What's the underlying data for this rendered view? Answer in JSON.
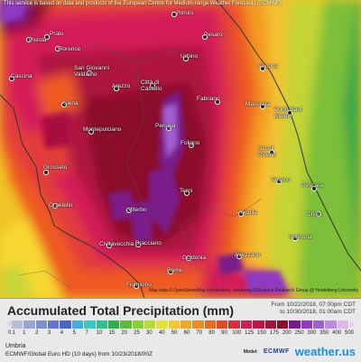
{
  "map": {
    "disclaimer": "This service is based on data and products of the European Centre for Medium-range Weather Forecasts (ECMWF)",
    "attribution": "Map data © OpenStreetMap contributors, rendering GIScience Research Group @ Heidelberg University",
    "cities": [
      {
        "id": "rimini",
        "label": "Rimini"
      },
      {
        "id": "prato",
        "label": "Prato"
      },
      {
        "id": "pistoia",
        "label": "Pistoia"
      },
      {
        "id": "florence",
        "label": "Florence"
      },
      {
        "id": "pesaro",
        "label": "Pesaro"
      },
      {
        "id": "san-giovanni",
        "label": "San Giovanni\nValdarno"
      },
      {
        "id": "urbino",
        "label": "Urbino"
      },
      {
        "id": "cascina",
        "label": "Cascina"
      },
      {
        "id": "siena",
        "label": "Siena"
      },
      {
        "id": "arezzo",
        "label": "Arezzo"
      },
      {
        "id": "citta-di-castello",
        "label": "Città di\nCastello"
      },
      {
        "id": "ancona",
        "label": "Ancona"
      },
      {
        "id": "macerata",
        "label": "Macerata"
      },
      {
        "id": "porto-san-elpidio",
        "label": "Porto Sant\nElpidio"
      },
      {
        "id": "fabriano",
        "label": "Fabriano"
      },
      {
        "id": "perugia",
        "label": "Perugia"
      },
      {
        "id": "montepulciano",
        "label": "Montepulciano"
      },
      {
        "id": "foligno",
        "label": "Foligno"
      },
      {
        "id": "ascoli-piceno",
        "label": "Ascoli\nPiceno"
      },
      {
        "id": "teramo",
        "label": "Teramo"
      },
      {
        "id": "grosseto",
        "label": "Grosseto"
      },
      {
        "id": "terni",
        "label": "Terni"
      },
      {
        "id": "pescara",
        "label": "Pescara"
      },
      {
        "id": "orbetello",
        "label": "Orbetello"
      },
      {
        "id": "viterbo",
        "label": "Viterbo"
      },
      {
        "id": "laquila",
        "label": "L'Aquila"
      },
      {
        "id": "chieti",
        "label": "Chieti"
      },
      {
        "id": "civitavecchia",
        "label": "Civitavecchia"
      },
      {
        "id": "bracciano",
        "label": "Bracciano"
      },
      {
        "id": "sulmona",
        "label": "Sulmona"
      },
      {
        "id": "guidonia",
        "label": "Guidonia"
      },
      {
        "id": "avezzano",
        "label": "Avezzano"
      },
      {
        "id": "rome",
        "label": "Rome"
      },
      {
        "id": "fiumicino",
        "label": "Fiumicino"
      }
    ]
  },
  "legend": {
    "title": "Accumulated Total Precipitation (mm)",
    "valid_from": "From 10/22/2018, 07:00pm CDT",
    "valid_to": "to 10/30/2018, 01:00am CDT",
    "ticks": [
      "0.1",
      "1",
      "2",
      "3",
      "4",
      "5",
      "7",
      "10",
      "15",
      "20",
      "25",
      "30",
      "40",
      "50",
      "60",
      "70",
      "80",
      "90",
      "100",
      "125",
      "150",
      "175",
      "200",
      "250",
      "300",
      "350",
      "400",
      "500"
    ],
    "colors": [
      "#b8bed6",
      "#98a4d4",
      "#7e8fd1",
      "#5f76cc",
      "#4a63c7",
      "#3fb0d8",
      "#36c8c4",
      "#2cc28e",
      "#2fb14a",
      "#54c032",
      "#8ad033",
      "#b8db32",
      "#e6e231",
      "#f5c629",
      "#f5a623",
      "#f18a1f",
      "#ec6a1e",
      "#e54a25",
      "#de2c3c",
      "#d21f52",
      "#bf1450",
      "#a8103f",
      "#8c0c2c",
      "#7a1a8a",
      "#8e3bc0",
      "#a35fd2",
      "#bf8be0",
      "#d9b9ee"
    ],
    "min_arrow_color": "#d8d8e8",
    "max_arrow_color": "#e6d1f3"
  },
  "footer": {
    "region": "Umbria",
    "model": "ECMWF/Global Euro HD (10 days) from 10/23/2018/00Z",
    "model_label": "Model:",
    "ecmwf": "ECMWF",
    "brand": "weather.us"
  }
}
